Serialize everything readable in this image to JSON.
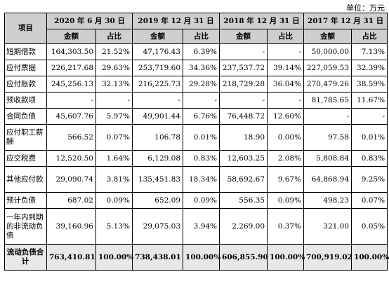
{
  "unit_label": "单位：万元",
  "header": {
    "item": "项目",
    "periods": [
      "2020 年 6 月 30 日",
      "2019 年 12 月 31 日",
      "2018 年 12 月 31 日",
      "2017 年 12 月 31 日"
    ],
    "amount": "金额",
    "ratio": "占比"
  },
  "rows": [
    {
      "label": "短期借款",
      "cells": [
        "164,303.50",
        "21.52%",
        "47,176.43",
        "6.39%",
        "-",
        "-",
        "50,000.00",
        "7.13%"
      ]
    },
    {
      "label": "应付票据",
      "cells": [
        "226,217.68",
        "29.63%",
        "253,719.60",
        "34.36%",
        "237,537.72",
        "39.14%",
        "227,059.53",
        "32.39%"
      ]
    },
    {
      "label": "应付账款",
      "cells": [
        "245,256.13",
        "32.13%",
        "216,225.73",
        "29.28%",
        "218,729.28",
        "36.04%",
        "270,479.26",
        "38.59%"
      ]
    },
    {
      "label": "预收款项",
      "cells": [
        "-",
        "-",
        "-",
        "-",
        "-",
        "-",
        "81,785.65",
        "11.67%"
      ]
    },
    {
      "label": "合同负债",
      "cells": [
        "45,607.76",
        "5.97%",
        "49,901.44",
        "6.76%",
        "76,448.72",
        "12.60%",
        "-",
        "-"
      ]
    },
    {
      "label": "应付职工薪酬",
      "cells": [
        "566.52",
        "0.07%",
        "106.78",
        "0.01%",
        "18.90",
        "0.00%",
        "97.58",
        "0.01%"
      ]
    },
    {
      "label": "应交税费",
      "cells": [
        "12,520.50",
        "1.64%",
        "6,129.08",
        "0.83%",
        "12,603.25",
        "2.08%",
        "5,808.84",
        "0.83%"
      ]
    },
    {
      "label": "其他应付款",
      "cells": [
        "29,090.74",
        "3.81%",
        "135,451.83",
        "18.34%",
        "58,692.67",
        "9.67%",
        "64,868.94",
        "9.25%"
      ]
    },
    {
      "label": "预计负债",
      "cells": [
        "687.02",
        "0.09%",
        "652.09",
        "0.09%",
        "556.35",
        "0.09%",
        "498.23",
        "0.07%"
      ]
    },
    {
      "label": "一年内到期的非流动负债",
      "cells": [
        "39,160.96",
        "5.13%",
        "29,075.03",
        "3.94%",
        "2,269.00",
        "0.37%",
        "321.00",
        "0.05%"
      ]
    },
    {
      "label": "流动负债合计",
      "cells": [
        "763,410.81",
        "100.00%",
        "738,438.01",
        "100.00%",
        "606,855.90",
        "100.00%",
        "700,919.02",
        "100.00%"
      ]
    }
  ]
}
